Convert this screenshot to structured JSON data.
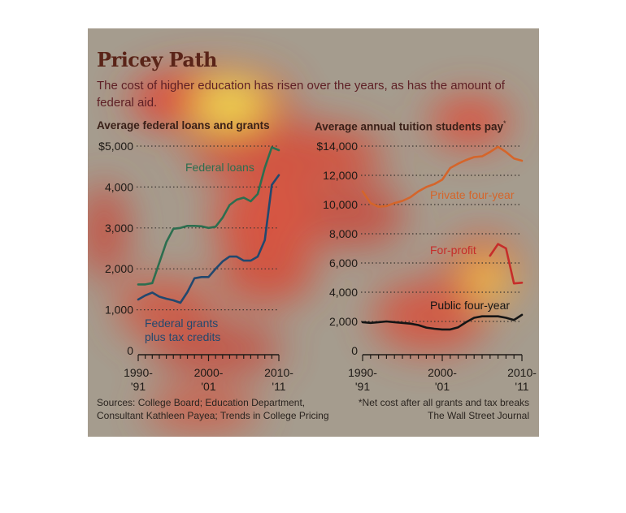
{
  "header": {
    "title": "Pricey Path",
    "subtitle": "The cost of higher education has risen over the years, as has the amount of federal aid."
  },
  "footer": {
    "sources_line1": "Sources: College Board; Education Department,",
    "sources_line2": "Consultant Kathleen Payea; Trends in College Pricing",
    "footnote": "*Net cost after all grants and tax breaks",
    "credit": "The Wall Street Journal"
  },
  "colors": {
    "panel_background": "#a59c8e",
    "federal_loans": "#2c6e4f",
    "federal_grants": "#22486e",
    "private_four_year": "#d5652a",
    "for_profit": "#c62d2a",
    "public_four_year": "#151515"
  },
  "chart_data": [
    {
      "type": "line",
      "title": "Average federal loans and grants",
      "x_tick_labels": [
        [
          "1990-",
          "'91"
        ],
        [
          "2000-",
          "'01"
        ],
        [
          "2010-",
          "'11"
        ]
      ],
      "x_ticks": [
        1990,
        2000,
        2010
      ],
      "xlim": [
        1990,
        2010
      ],
      "ylim": [
        0,
        5000
      ],
      "y_ticks": [
        0,
        1000,
        2000,
        3000,
        4000,
        5000
      ],
      "y_tick_labels": [
        "0",
        "1,000",
        "2,000",
        "3,000",
        "4,000",
        "$5,000"
      ],
      "grid": true,
      "x": [
        1990,
        1991,
        1992,
        1993,
        1994,
        1995,
        1996,
        1997,
        1998,
        1999,
        2000,
        2001,
        2002,
        2003,
        2004,
        2005,
        2006,
        2007,
        2008,
        2009,
        2010
      ],
      "series": [
        {
          "name": "Federal loans",
          "color_key": "federal_loans",
          "values": [
            1620,
            1620,
            1650,
            2150,
            2650,
            2980,
            3000,
            3050,
            3050,
            3040,
            3000,
            3030,
            3250,
            3560,
            3690,
            3740,
            3650,
            3830,
            4470,
            4970,
            4900
          ]
        },
        {
          "name": "Federal grants plus tax credits",
          "color_key": "federal_grants",
          "values": [
            1250,
            1350,
            1420,
            1320,
            1270,
            1230,
            1170,
            1430,
            1770,
            1800,
            1800,
            2000,
            2180,
            2300,
            2300,
            2200,
            2200,
            2300,
            2700,
            4050,
            4290
          ]
        }
      ]
    },
    {
      "type": "line",
      "title": "Average annual tuition students pay",
      "title_marker": "*",
      "x_tick_labels": [
        [
          "1990-",
          "'91"
        ],
        [
          "2000-",
          "'01"
        ],
        [
          "2010-",
          "'11"
        ]
      ],
      "x_ticks": [
        1990,
        2000,
        2010
      ],
      "xlim": [
        1990,
        2010
      ],
      "ylim": [
        0,
        14000
      ],
      "y_ticks": [
        0,
        2000,
        4000,
        6000,
        8000,
        10000,
        12000,
        14000
      ],
      "y_tick_labels": [
        "0",
        "2,000",
        "4,000",
        "6,000",
        "8,000",
        "10,000",
        "12,000",
        "$14,000"
      ],
      "grid": true,
      "x": [
        1990,
        1991,
        1992,
        1993,
        1994,
        1995,
        1996,
        1997,
        1998,
        1999,
        2000,
        2001,
        2002,
        2003,
        2004,
        2005,
        2006,
        2007,
        2008,
        2009,
        2010
      ],
      "series": [
        {
          "name": "Private four-year",
          "color_key": "private_four_year",
          "values": [
            10900,
            10100,
            9850,
            9900,
            10100,
            10250,
            10500,
            10900,
            11200,
            11400,
            11700,
            12500,
            12800,
            13050,
            13250,
            13300,
            13600,
            13950,
            13600,
            13150,
            13000
          ]
        },
        {
          "name": "For-profit",
          "color_key": "for_profit",
          "x": [
            2006,
            2007,
            2008,
            2009,
            2010
          ],
          "values": [
            6500,
            7300,
            7000,
            4600,
            4650
          ]
        },
        {
          "name": "Public four-year",
          "color_key": "public_four_year",
          "values": [
            1950,
            1900,
            1950,
            2000,
            1950,
            1900,
            1850,
            1750,
            1580,
            1500,
            1450,
            1450,
            1600,
            1950,
            2250,
            2350,
            2350,
            2350,
            2250,
            2100,
            2450
          ]
        }
      ]
    }
  ]
}
